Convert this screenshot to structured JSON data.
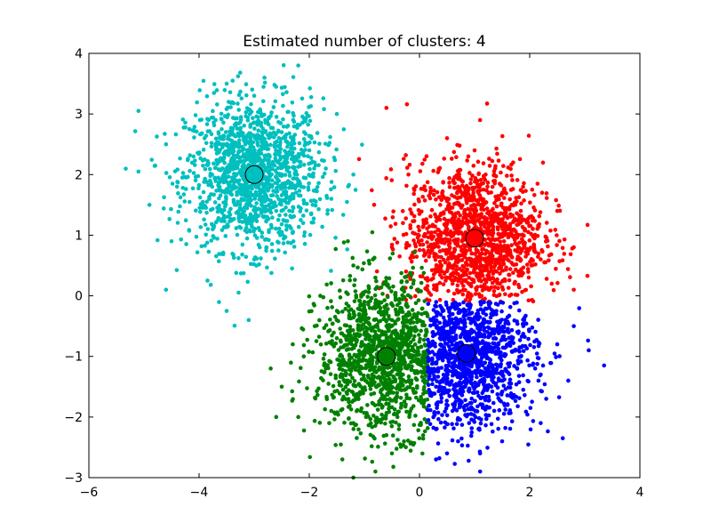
{
  "chart_data": {
    "type": "scatter",
    "title": "Estimated number of clusters: 4",
    "xlabel": "",
    "ylabel": "",
    "xlim": [
      -6,
      4
    ],
    "ylim": [
      -3,
      4
    ],
    "x_ticks": [
      -6,
      -4,
      -2,
      0,
      2,
      4
    ],
    "y_ticks": [
      -3,
      -2,
      -1,
      0,
      1,
      2,
      3,
      4
    ],
    "x_tick_labels": [
      "−6",
      "−4",
      "−2",
      "0",
      "2",
      "4"
    ],
    "y_tick_labels": [
      "−3",
      "−2",
      "−1",
      "0",
      "1",
      "2",
      "3",
      "4"
    ],
    "grid": false,
    "legend": "none",
    "series": [
      {
        "color": "#00bfbf",
        "center": [
          -3.0,
          2.0
        ],
        "points": [
          [
            -3.2,
            2.3
          ],
          [
            -2.7,
            1.8
          ],
          [
            -3.5,
            2.1
          ],
          [
            -2.9,
            2.6
          ],
          [
            -3.1,
            1.5
          ],
          [
            -2.4,
            2.2
          ],
          [
            -3.8,
            1.9
          ],
          [
            -2.6,
            1.4
          ],
          [
            -3.4,
            2.7
          ],
          [
            -2.2,
            1.9
          ],
          [
            -3.6,
            1.4
          ],
          [
            -2.8,
            2.9
          ],
          [
            -3.0,
            1.1
          ],
          [
            -4.1,
            2.3
          ],
          [
            -2.0,
            2.4
          ],
          [
            -3.3,
            1.7
          ],
          [
            -2.5,
            2.7
          ],
          [
            -3.9,
            2.6
          ],
          [
            -2.3,
            1.3
          ],
          [
            -3.7,
            2.9
          ],
          [
            -4.4,
            1.8
          ],
          [
            -1.7,
            2.1
          ],
          [
            -3.0,
            3.3
          ],
          [
            -2.9,
            0.8
          ],
          [
            -4.6,
            2.5
          ],
          [
            -1.6,
            1.6
          ],
          [
            -3.5,
            3.5
          ],
          [
            -4.9,
            1.5
          ],
          [
            -1.2,
            2.0
          ],
          [
            -4.5,
            0.9
          ],
          [
            -5.1,
            3.05
          ],
          [
            -4.6,
            0.1
          ],
          [
            -3.0,
            0.6
          ],
          [
            -1.5,
            3.0
          ],
          [
            -3.5,
            -0.25
          ],
          [
            -2.2,
            3.8
          ],
          [
            -5.1,
            2.05
          ],
          [
            -3.1,
            -0.4
          ]
        ],
        "extreme_points": [
          [
            -5.1,
            3.05
          ],
          [
            -4.6,
            0.1
          ],
          [
            -3.5,
            -0.25
          ],
          [
            -3.1,
            -0.4
          ],
          [
            -5.1,
            2.05
          ],
          [
            -1.0,
            3.0
          ],
          [
            -0.6,
            3.1
          ]
        ]
      },
      {
        "color": "#ff0000",
        "center": [
          1.0,
          0.95
        ],
        "points": [
          [
            0.8,
            1.2
          ],
          [
            1.3,
            0.7
          ],
          [
            0.5,
            0.9
          ],
          [
            1.1,
            1.5
          ],
          [
            0.9,
            0.3
          ],
          [
            1.6,
            1.1
          ],
          [
            0.3,
            1.3
          ],
          [
            1.4,
            0.4
          ],
          [
            0.7,
            1.8
          ],
          [
            1.8,
            0.8
          ],
          [
            0.4,
            0.5
          ],
          [
            1.2,
            2.0
          ],
          [
            0.9,
            -0.1
          ],
          [
            2.0,
            1.3
          ],
          [
            0.1,
            1.0
          ],
          [
            1.5,
            1.7
          ],
          [
            0.6,
            0.2
          ],
          [
            2.2,
            0.6
          ],
          [
            0.2,
            1.7
          ],
          [
            1.0,
            2.4
          ],
          [
            1.7,
            2.2
          ],
          [
            -0.3,
            1.2
          ],
          [
            2.5,
            1.4
          ],
          [
            -0.5,
            0.8
          ],
          [
            0.5,
            2.6
          ],
          [
            2.4,
            0.2
          ],
          [
            -0.2,
            2.0
          ],
          [
            1.1,
            2.9
          ],
          [
            2.8,
            0.8
          ],
          [
            3.05,
            1.17
          ],
          [
            2.8,
            0.1
          ],
          [
            -0.6,
            3.1
          ]
        ]
      },
      {
        "color": "#008000",
        "center": [
          -0.6,
          -1.0
        ],
        "points": [
          [
            -0.8,
            -0.7
          ],
          [
            -0.3,
            -1.3
          ],
          [
            -1.1,
            -1.0
          ],
          [
            -0.5,
            -0.4
          ],
          [
            -0.7,
            -1.7
          ],
          [
            -0.2,
            -0.8
          ],
          [
            -1.3,
            -1.4
          ],
          [
            -0.9,
            -0.2
          ],
          [
            -0.1,
            -1.6
          ],
          [
            -1.5,
            -0.7
          ],
          [
            -0.4,
            -2.0
          ],
          [
            -1.0,
            -0.1
          ],
          [
            -1.7,
            -1.2
          ],
          [
            -0.6,
            -2.3
          ],
          [
            -1.9,
            -0.5
          ],
          [
            -0.3,
            0.1
          ],
          [
            -1.2,
            -2.1
          ],
          [
            -2.1,
            -1.0
          ],
          [
            -0.8,
            0.3
          ],
          [
            -1.6,
            -1.9
          ],
          [
            -2.3,
            -0.8
          ],
          [
            -0.5,
            -2.6
          ],
          [
            -1.8,
            0.0
          ],
          [
            -2.5,
            -1.5
          ],
          [
            -1.2,
            0.5
          ],
          [
            -2.7,
            -1.2
          ],
          [
            -2.2,
            -2.0
          ],
          [
            -1.4,
            -2.7
          ],
          [
            -0.8,
            -2.9
          ],
          [
            -2.6,
            -2.0
          ],
          [
            -1.3,
            0.9
          ],
          [
            -1.2,
            -3.1
          ]
        ]
      },
      {
        "color": "#0000ff",
        "center": [
          0.85,
          -0.95
        ],
        "points": [
          [
            0.9,
            -0.7
          ],
          [
            0.5,
            -1.2
          ],
          [
            1.2,
            -1.0
          ],
          [
            0.7,
            -0.4
          ],
          [
            1.0,
            -1.6
          ],
          [
            0.4,
            -0.6
          ],
          [
            1.5,
            -1.3
          ],
          [
            0.6,
            -1.9
          ],
          [
            1.3,
            -0.3
          ],
          [
            0.3,
            -1.5
          ],
          [
            1.8,
            -0.9
          ],
          [
            0.9,
            -2.1
          ],
          [
            1.6,
            -1.8
          ],
          [
            0.4,
            -0.2
          ],
          [
            2.1,
            -1.2
          ],
          [
            0.7,
            -2.4
          ],
          [
            1.9,
            -0.4
          ],
          [
            0.3,
            -2.2
          ],
          [
            2.3,
            -1.7
          ],
          [
            1.1,
            -2.6
          ],
          [
            2.5,
            -0.8
          ],
          [
            0.5,
            -2.6
          ],
          [
            2.2,
            -2.1
          ],
          [
            1.5,
            -2.4
          ],
          [
            2.7,
            -1.4
          ],
          [
            2.8,
            -0.5
          ],
          [
            3.35,
            -1.15
          ],
          [
            1.1,
            -2.9
          ],
          [
            2.6,
            -2.35
          ],
          [
            0.3,
            -2.7
          ]
        ]
      }
    ]
  }
}
